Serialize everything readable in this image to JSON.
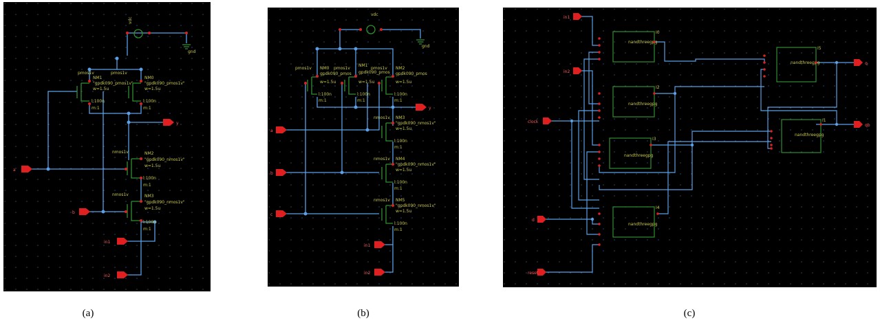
{
  "captions": {
    "a": "(a)",
    "b": "(b)",
    "c": "(c)"
  },
  "colors": {
    "background": "#000000",
    "wire": "#5aa0e6",
    "device": "#2f8f2f",
    "pin": "#e02020",
    "label": "#c8c84a",
    "dot": "#2a4a70"
  },
  "panel_a": {
    "vdc": "vdc",
    "gnd": "gnd",
    "device_labels": [
      {
        "name": "pmos1v",
        "id": "NM1",
        "model": "\"gpdk090_pmos1v\"",
        "w": "w=1.5u",
        "l": "l:100n",
        "m": "m:1"
      },
      {
        "name": "pmos1v",
        "id": "NM0",
        "model": "\"gpdk090_pmos1v\"",
        "w": "w=1.5u",
        "l": "l:100n",
        "m": "m:1"
      },
      {
        "name": "nmos1v",
        "id": "NM2",
        "model": "\"gpdk090_nmos1v\"",
        "w": "w=1.5u",
        "l": "l:100n",
        "m": "m:1"
      },
      {
        "name": "nmos1v",
        "id": "NM3",
        "model": "\"gpdk090_nmos1v\"",
        "w": "w=1.5u",
        "l": "l:100n",
        "m": "m:1"
      }
    ],
    "pins": {
      "a": "a",
      "b": "b",
      "y": "y",
      "in1": "in1",
      "in2": "in2"
    }
  },
  "panel_b": {
    "vdc": "vdc",
    "gnd": "gnd",
    "device_labels": [
      {
        "name": "pmos1v",
        "id": "NM0",
        "model": "gpdk090_pmos",
        "w": "w=1.5u",
        "l": "l:100n",
        "m": "m:1"
      },
      {
        "name": "pmos1v",
        "id": "NM1",
        "model": "gpdk090_pmos",
        "w": "w=1.5u",
        "l": "l:100n",
        "m": "m:1"
      },
      {
        "name": "pmos1v",
        "id": "NM2",
        "model": "gpdk090_pmos",
        "w": "w=1.5u",
        "l": "l:100n",
        "m": "m:1"
      },
      {
        "name": "nmos1v",
        "id": "NM3",
        "model": "\"gpdk090_nmos1v\"",
        "w": "w=1.5u",
        "l": "l:100n",
        "m": "m:1"
      },
      {
        "name": "nmos1v",
        "id": "NM4",
        "model": "\"gpdk090_nmos1v\"",
        "w": "w=1.5u",
        "l": "l:100n",
        "m": "m:1"
      },
      {
        "name": "nmos1v",
        "id": "NM5",
        "model": "\"gpdk090_nmos1v\"",
        "w": "w=1.5u",
        "l": "l:100n",
        "m": "m:1"
      }
    ],
    "pins": {
      "a": "a",
      "b": "b",
      "c": "c",
      "y": "y",
      "in1": "in1",
      "in2": "in2"
    }
  },
  "panel_c": {
    "block_name": "nandthreegpg",
    "blocks": [
      "I0",
      "I2",
      "I3",
      "I4",
      "I5",
      "I1"
    ],
    "pins": {
      "in1": "in1",
      "in2": "in2",
      "clock": "clock",
      "d": "d",
      "reset": "reset",
      "q": "q",
      "qb": "qb"
    }
  }
}
